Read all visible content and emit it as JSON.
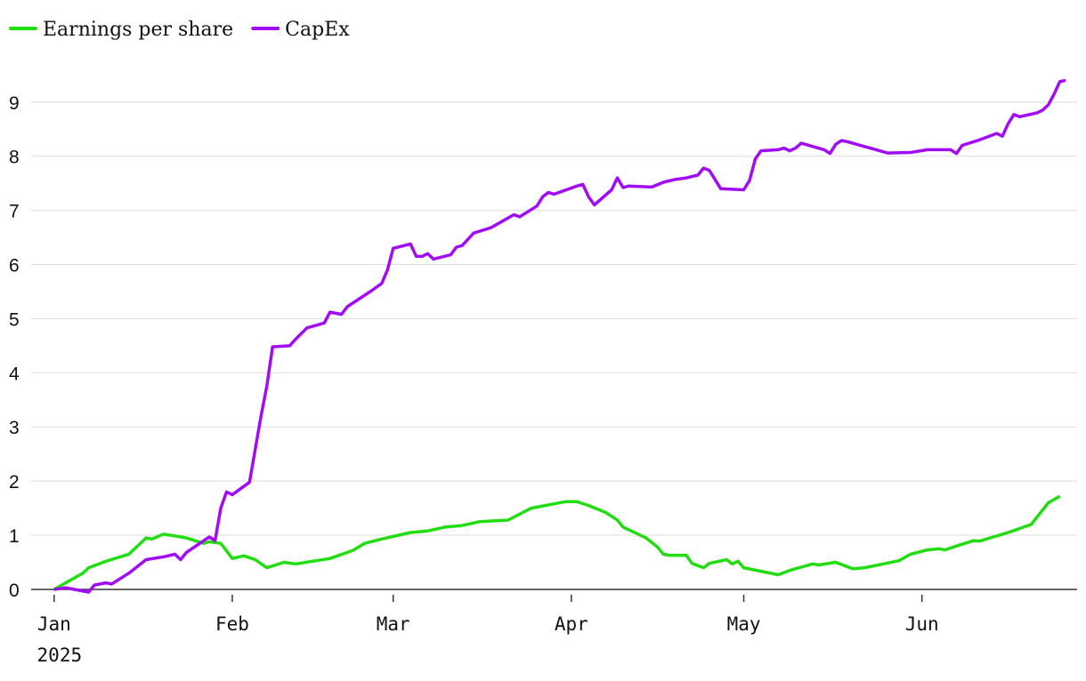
{
  "chart_data": {
    "type": "line",
    "x_year_label": "2025",
    "xlim": [
      -4,
      178
    ],
    "xticks": [
      {
        "value": 0,
        "label": "Jan"
      },
      {
        "value": 31,
        "label": "Feb"
      },
      {
        "value": 59,
        "label": "Mar"
      },
      {
        "value": 90,
        "label": "Apr"
      },
      {
        "value": 120,
        "label": "May"
      },
      {
        "value": 151,
        "label": "Jun"
      }
    ],
    "ylim": [
      -0.05,
      9.9
    ],
    "yticks": [
      0,
      1,
      2,
      3,
      4,
      5,
      6,
      7,
      8,
      9
    ],
    "grid": true,
    "legend": "top-left",
    "series": [
      {
        "name": "Earnings per share",
        "color": "#22dd11",
        "x": [
          0,
          2,
          5,
          6,
          8,
          9,
          13,
          16,
          17,
          19,
          22,
          23,
          26,
          27,
          29,
          31,
          33,
          35,
          37,
          40,
          42,
          48,
          52,
          54,
          57,
          62,
          65,
          68,
          71,
          74,
          79,
          83,
          87,
          89,
          91,
          93,
          96,
          98,
          99,
          103,
          105,
          106,
          107,
          110,
          111,
          113,
          114,
          117,
          118,
          119,
          120,
          126,
          128,
          132,
          133,
          136,
          139,
          141,
          147,
          149,
          152,
          154,
          155,
          157,
          160,
          161,
          166,
          170,
          173,
          175
        ],
        "values": [
          0,
          0.12,
          0.3,
          0.4,
          0.48,
          0.52,
          0.65,
          0.95,
          0.93,
          1.02,
          0.97,
          0.95,
          0.85,
          0.88,
          0.85,
          0.57,
          0.62,
          0.55,
          0.4,
          0.5,
          0.47,
          0.57,
          0.72,
          0.85,
          0.93,
          1.05,
          1.08,
          1.15,
          1.18,
          1.25,
          1.28,
          1.5,
          1.58,
          1.62,
          1.62,
          1.55,
          1.42,
          1.28,
          1.15,
          0.95,
          0.78,
          0.65,
          0.63,
          0.63,
          0.48,
          0.4,
          0.48,
          0.55,
          0.47,
          0.52,
          0.4,
          0.27,
          0.35,
          0.47,
          0.45,
          0.5,
          0.38,
          0.4,
          0.53,
          0.65,
          0.73,
          0.75,
          0.73,
          0.8,
          0.9,
          0.89,
          1.05,
          1.2,
          1.6,
          1.72
        ]
      },
      {
        "name": "CapEx",
        "color": "#a10cf5",
        "x": [
          0,
          2,
          6,
          7,
          9,
          10,
          13,
          16,
          19,
          21,
          22,
          23,
          27,
          28,
          29,
          30,
          31,
          34,
          36,
          37,
          38,
          41,
          42,
          44,
          47,
          48,
          50,
          51,
          55,
          57,
          58,
          59,
          62,
          63,
          64,
          65,
          66,
          69,
          70,
          71,
          73,
          76,
          78,
          80,
          81,
          84,
          85,
          86,
          87,
          91,
          92,
          93,
          94,
          97,
          98,
          99,
          100,
          104,
          106,
          108,
          110,
          112,
          113,
          114,
          116,
          120,
          121,
          122,
          123,
          126,
          127,
          128,
          129,
          130,
          134,
          135,
          136,
          137,
          138,
          141,
          142,
          145,
          149,
          152,
          156,
          157,
          158,
          161,
          164,
          165,
          166,
          167,
          168,
          171,
          172,
          173,
          174,
          175,
          176
        ],
        "values": [
          0,
          0.03,
          -0.05,
          0.08,
          0.12,
          0.1,
          0.3,
          0.55,
          0.6,
          0.65,
          0.55,
          0.68,
          0.97,
          0.9,
          1.5,
          1.8,
          1.75,
          1.98,
          3.2,
          3.75,
          4.48,
          4.5,
          4.62,
          4.83,
          4.92,
          5.12,
          5.08,
          5.22,
          5.5,
          5.65,
          5.9,
          6.3,
          6.38,
          6.15,
          6.15,
          6.2,
          6.1,
          6.18,
          6.32,
          6.35,
          6.58,
          6.68,
          6.8,
          6.92,
          6.88,
          7.08,
          7.25,
          7.33,
          7.3,
          7.45,
          7.48,
          7.25,
          7.1,
          7.38,
          7.6,
          7.42,
          7.45,
          7.43,
          7.52,
          7.57,
          7.6,
          7.65,
          7.78,
          7.74,
          7.4,
          7.38,
          7.55,
          7.95,
          8.1,
          8.12,
          8.15,
          8.1,
          8.15,
          8.24,
          8.12,
          8.05,
          8.22,
          8.29,
          8.27,
          8.18,
          8.15,
          8.06,
          8.07,
          8.12,
          8.12,
          8.05,
          8.2,
          8.3,
          8.42,
          8.37,
          8.6,
          8.77,
          8.73,
          8.8,
          8.85,
          8.95,
          9.15,
          9.38,
          9.4
        ]
      }
    ]
  }
}
